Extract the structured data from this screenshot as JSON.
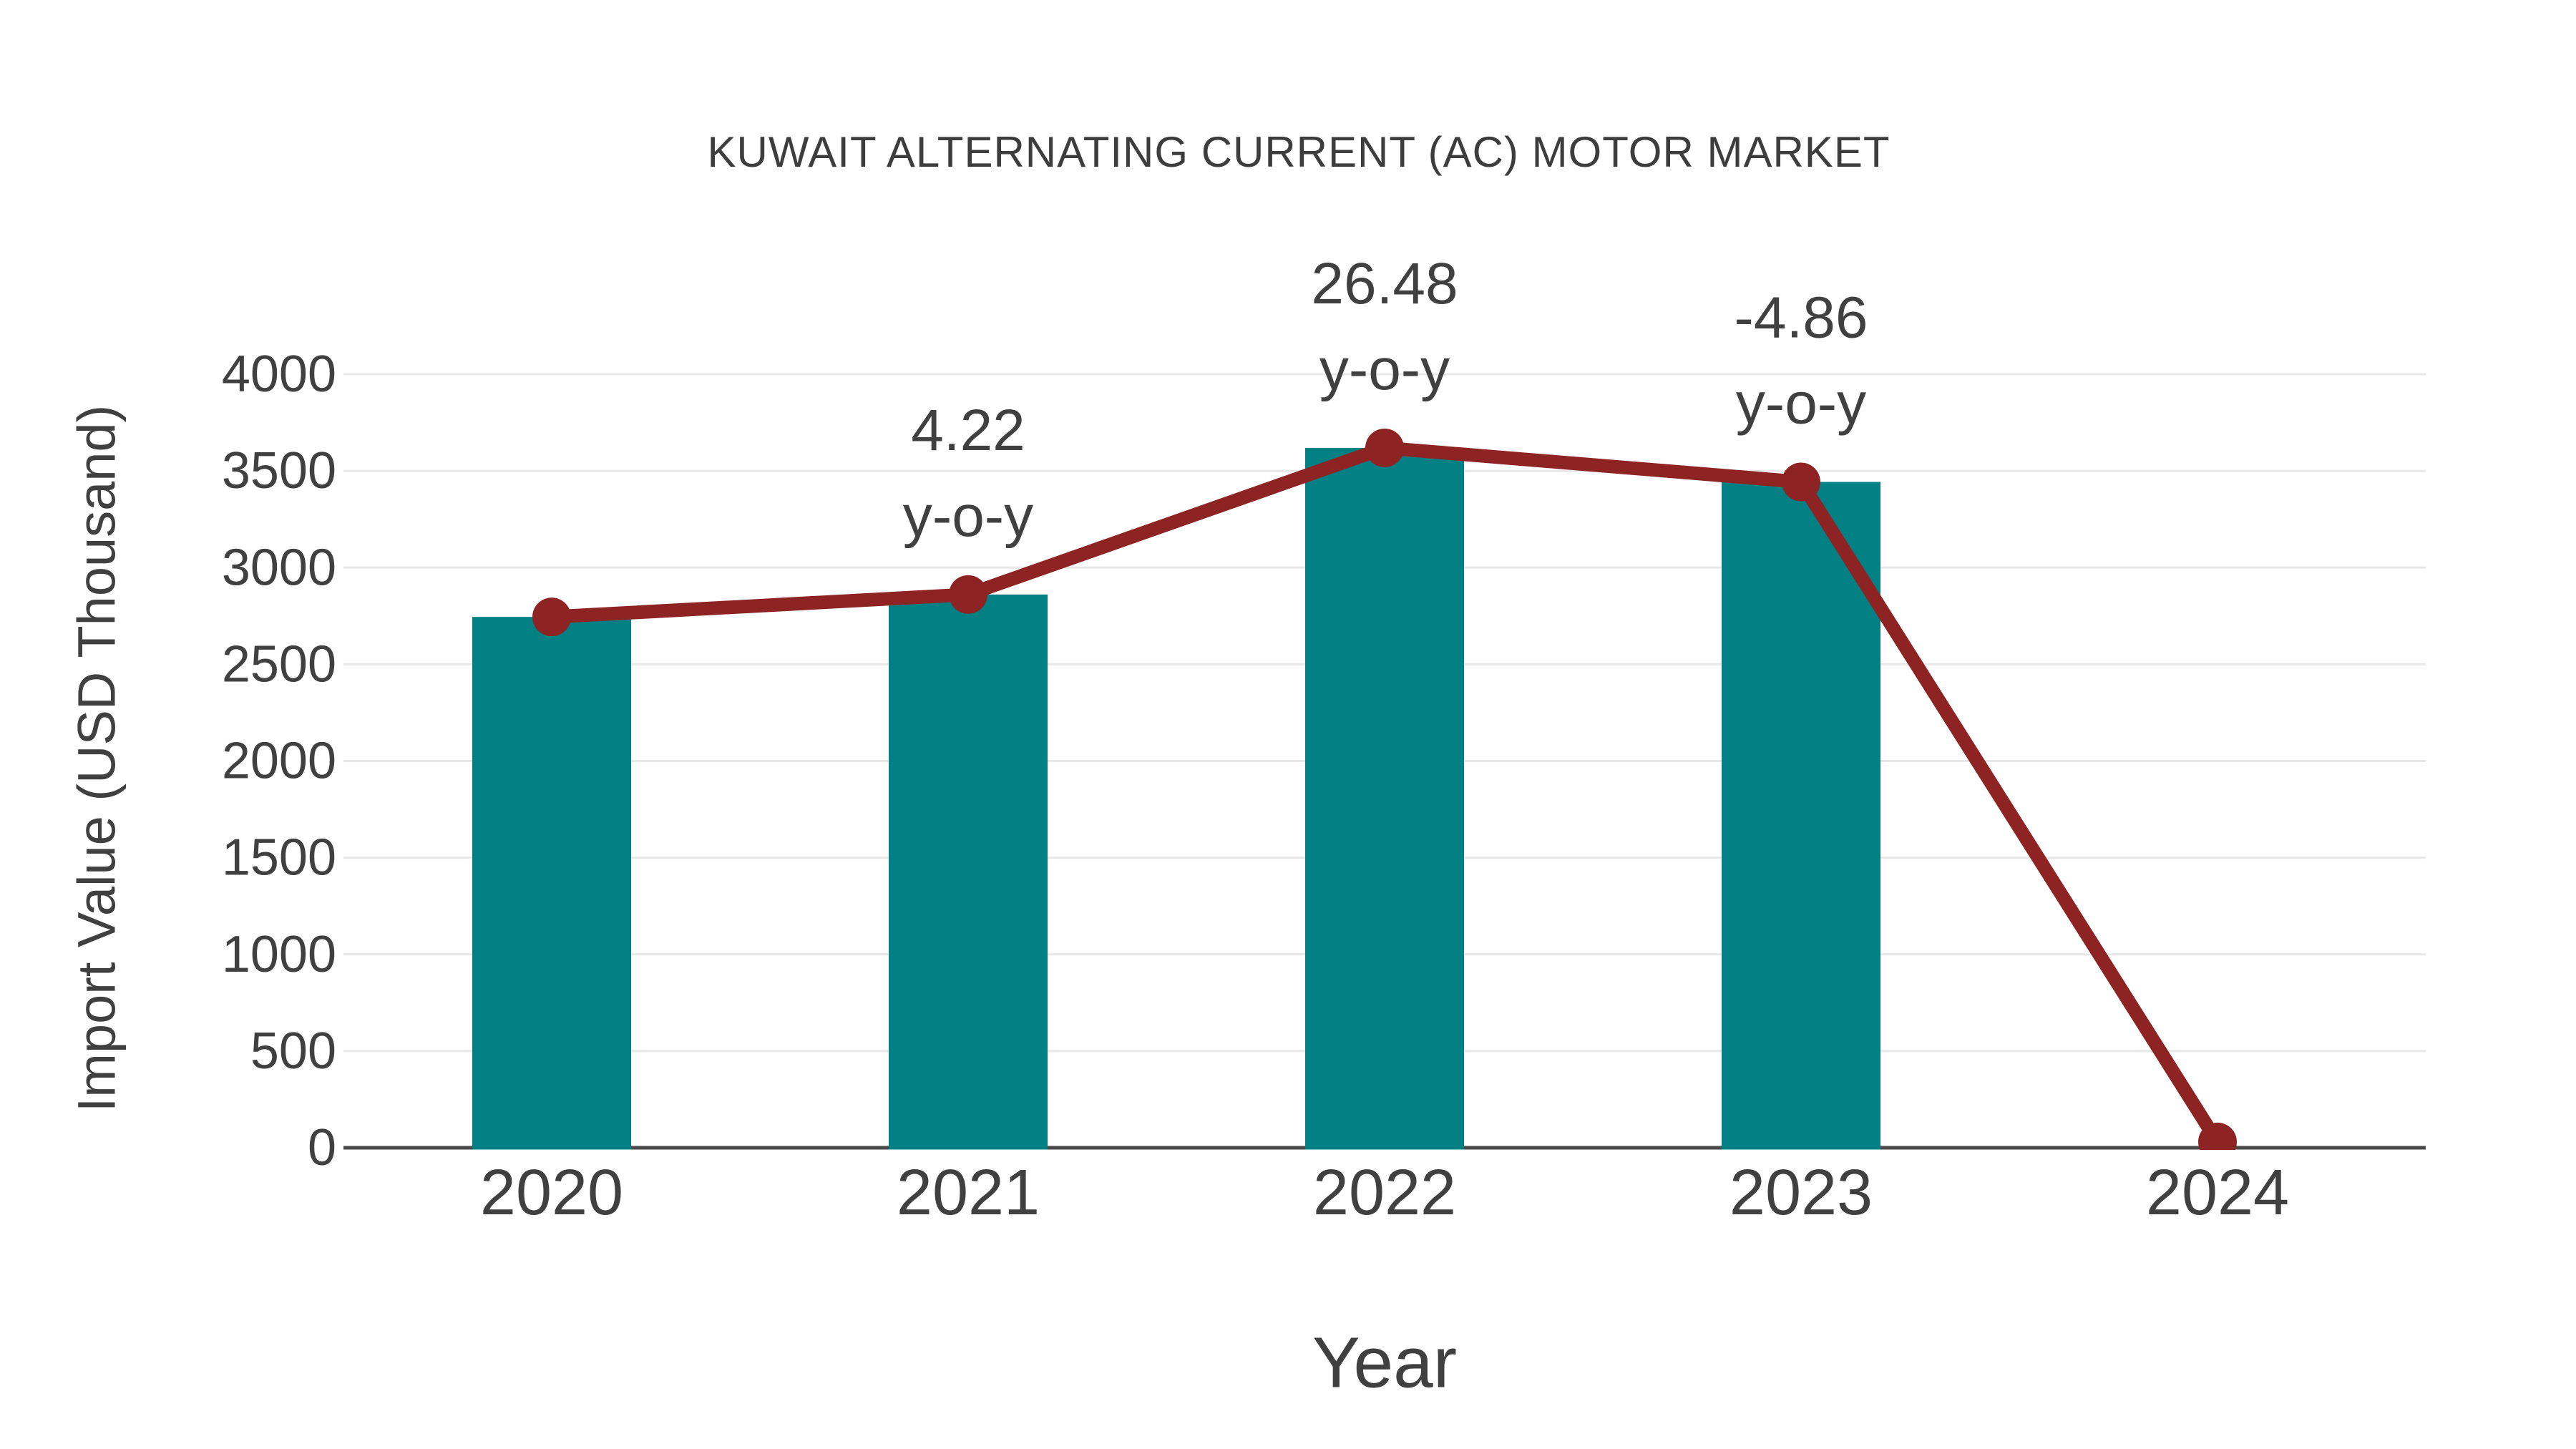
{
  "page": {
    "background_color": "#ffffff"
  },
  "chart_data": {
    "type": "bar",
    "title": "KUWAIT ALTERNATING CURRENT (AC) MOTOR MARKET",
    "xlabel": "Year",
    "ylabel": "Import Value (USD Thousand)",
    "categories": [
      "2020",
      "2021",
      "2022",
      "2023",
      "2024"
    ],
    "series": [
      {
        "name": "import-value-bars",
        "type": "bar",
        "color": "#038083",
        "values": [
          2745,
          2861,
          3619,
          3443,
          null
        ]
      },
      {
        "name": "import-value-trend-line",
        "type": "line",
        "color": "#8e2324",
        "values": [
          2745,
          2861,
          3619,
          3443,
          30
        ]
      }
    ],
    "annotations": [
      {
        "category": "2021",
        "lines": [
          "4.22",
          "y-o-y"
        ]
      },
      {
        "category": "2022",
        "lines": [
          "26.48",
          "y-o-y"
        ]
      },
      {
        "category": "2023",
        "lines": [
          "-4.86",
          "y-o-y"
        ]
      }
    ],
    "ylim": [
      0,
      4000
    ],
    "ytick_step": 500,
    "yticks": [
      "0",
      "500",
      "1000",
      "1500",
      "2000",
      "2500",
      "3000",
      "3500",
      "4000"
    ],
    "grid": "horizontal",
    "legend": "none",
    "colors": {
      "bar": "#038083",
      "line": "#8e2324",
      "marker": "#8e2324",
      "gridline": "#e8e8e8",
      "axis_line": "#4a4a4a",
      "text": "#404040"
    }
  }
}
